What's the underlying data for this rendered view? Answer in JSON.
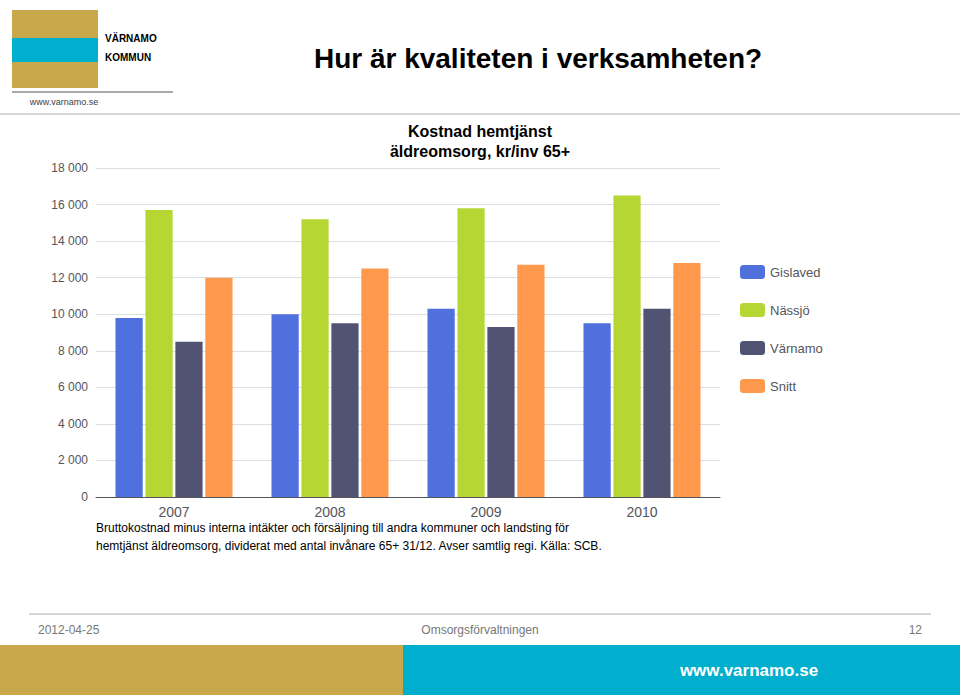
{
  "chart_data": {
    "type": "bar",
    "title": "Kostnad hemtjänst",
    "subtitle": "äldreomsorg, kr/inv 65+",
    "categories": [
      "2007",
      "2008",
      "2009",
      "2010"
    ],
    "series": [
      {
        "name": "Gislaved",
        "values": [
          9800,
          10000,
          10300,
          9500
        ]
      },
      {
        "name": "Nässjö",
        "values": [
          15700,
          15200,
          15800,
          16500
        ]
      },
      {
        "name": "Värnamo",
        "values": [
          8500,
          9500,
          9300,
          10300
        ]
      },
      {
        "name": "Snitt",
        "values": [
          12000,
          12500,
          12700,
          12800
        ]
      }
    ],
    "ylim": [
      0,
      18000
    ],
    "yticks": [
      0,
      {
        "value": 2000,
        "label": "2 000"
      },
      {
        "value": 4000,
        "label": "4 000"
      },
      {
        "value": 6000,
        "label": "6 000"
      },
      {
        "value": 8000,
        "label": "8 000"
      },
      {
        "value": 10000,
        "label": "10 000"
      },
      {
        "value": 12000,
        "label": "12 000"
      },
      {
        "value": 14000,
        "label": "14 000"
      },
      {
        "value": 16000,
        "label": "16 000"
      },
      {
        "value": 18000,
        "label": "18 000"
      }
    ],
    "grid": true,
    "legend": "right",
    "annotations": [
      "Hur är kvaliteten i verksamheten?",
      "VÄRNAMO",
      "KOMMUN",
      "www.varnamo.se",
      "Bruttokostnad minus interna intäkter och försäljning till andra kommuner och landsting för",
      "hemtjänst äldreomsorg, dividerat med antal invånare 65+ 31/12. Avser samtlig regi. Källa: SCB.",
      "2012-04-25",
      "Omsorgsförvaltningen",
      "12",
      "www.varnamo.se"
    ]
  }
}
